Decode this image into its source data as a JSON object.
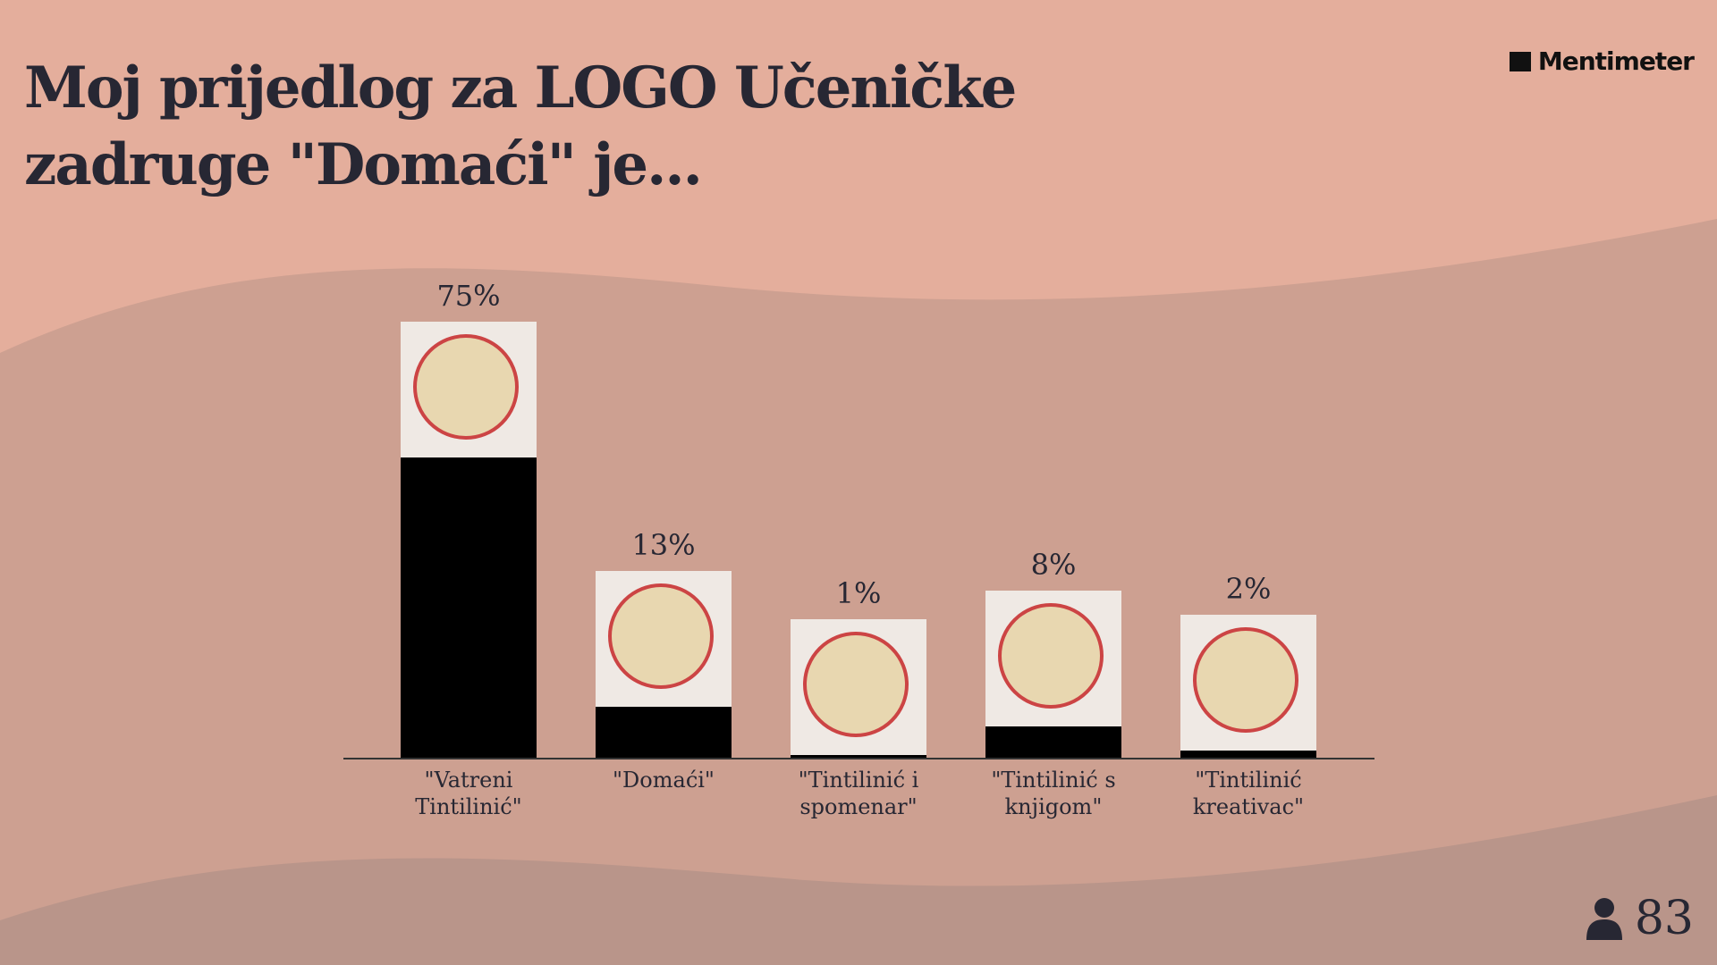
{
  "brand": "Mentimeter",
  "participants": 83,
  "chart_data": {
    "type": "bar",
    "title": "Moj prijedlog za LOGO Učeničke zadruge \"Domaći\" je...",
    "categories": [
      "\"Vatreni Tintilinić\"",
      "\"Domaći\"",
      "\"Tintilinić i spomenar\"",
      "\"Tintilinić s knjigom\"",
      "\"Tintilinić kreativac\""
    ],
    "values": [
      75,
      13,
      1,
      8,
      2
    ],
    "value_labels": [
      "75%",
      "13%",
      "1%",
      "8%",
      "2%"
    ],
    "color": "#000000"
  }
}
